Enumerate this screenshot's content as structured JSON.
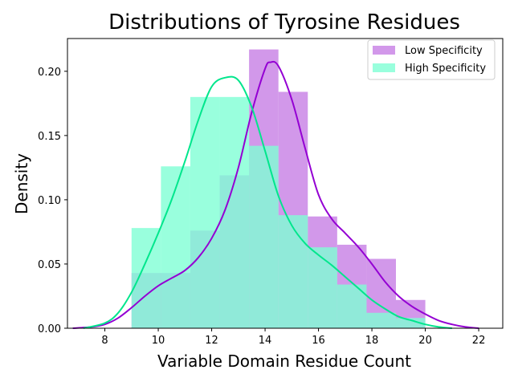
{
  "chart_data": {
    "type": "histogram",
    "title": "Distributions of Tyrosine Residues",
    "xlabel": "Variable Domain Residue Count",
    "ylabel": "Density",
    "xlim": [
      6.6,
      22.9
    ],
    "ylim": [
      0,
      0.2255
    ],
    "xticks": [
      8,
      10,
      12,
      14,
      16,
      18,
      20,
      22
    ],
    "yticks": [
      0.0,
      0.05,
      0.1,
      0.15,
      0.2
    ],
    "xtick_labels": [
      "8",
      "10",
      "12",
      "14",
      "16",
      "18",
      "20",
      "22"
    ],
    "ytick_labels": [
      "0.00",
      "0.05",
      "0.10",
      "0.15",
      "0.20"
    ],
    "legend_position": "top-right",
    "series": [
      {
        "name": "Low Specificity",
        "color": "#9400d3",
        "bar_color": "#c77ee5",
        "bins": [
          9.0,
          10.1,
          11.2,
          12.3,
          13.4,
          14.5,
          15.6,
          16.7,
          17.8,
          18.9,
          20.0
        ],
        "densities": [
          0.043,
          0.043,
          0.076,
          0.119,
          0.217,
          0.184,
          0.087,
          0.065,
          0.054,
          0.022
        ],
        "kde": [
          [
            6.8,
            0.0
          ],
          [
            7.5,
            0.001
          ],
          [
            8.0,
            0.003
          ],
          [
            8.5,
            0.008
          ],
          [
            9.0,
            0.016
          ],
          [
            9.5,
            0.025
          ],
          [
            10.0,
            0.033
          ],
          [
            10.5,
            0.039
          ],
          [
            11.0,
            0.045
          ],
          [
            11.5,
            0.055
          ],
          [
            12.0,
            0.07
          ],
          [
            12.5,
            0.092
          ],
          [
            13.0,
            0.125
          ],
          [
            13.5,
            0.168
          ],
          [
            14.0,
            0.202
          ],
          [
            14.2,
            0.207
          ],
          [
            14.5,
            0.204
          ],
          [
            15.0,
            0.178
          ],
          [
            15.5,
            0.14
          ],
          [
            16.0,
            0.104
          ],
          [
            16.5,
            0.085
          ],
          [
            17.0,
            0.074
          ],
          [
            17.5,
            0.063
          ],
          [
            18.0,
            0.05
          ],
          [
            18.5,
            0.036
          ],
          [
            19.0,
            0.025
          ],
          [
            19.5,
            0.017
          ],
          [
            20.0,
            0.011
          ],
          [
            20.5,
            0.006
          ],
          [
            21.0,
            0.003
          ],
          [
            21.5,
            0.001
          ],
          [
            22.0,
            0.0
          ]
        ]
      },
      {
        "name": "High Specificity",
        "color": "#00e68c",
        "bar_color": "#7fffd4",
        "bins": [
          9.0,
          10.1,
          11.2,
          12.3,
          13.4,
          14.5,
          15.6,
          16.7,
          17.8,
          18.9,
          20.0
        ],
        "densities": [
          0.078,
          0.126,
          0.18,
          0.18,
          0.142,
          0.088,
          0.063,
          0.034,
          0.012,
          0.008
        ],
        "kde": [
          [
            7.2,
            0.0
          ],
          [
            8.0,
            0.004
          ],
          [
            8.5,
            0.012
          ],
          [
            9.0,
            0.028
          ],
          [
            9.5,
            0.05
          ],
          [
            10.0,
            0.074
          ],
          [
            10.5,
            0.1
          ],
          [
            11.0,
            0.13
          ],
          [
            11.5,
            0.162
          ],
          [
            12.0,
            0.188
          ],
          [
            12.5,
            0.195
          ],
          [
            13.0,
            0.193
          ],
          [
            13.5,
            0.172
          ],
          [
            14.0,
            0.138
          ],
          [
            14.5,
            0.103
          ],
          [
            15.0,
            0.08
          ],
          [
            15.5,
            0.066
          ],
          [
            16.0,
            0.057
          ],
          [
            16.5,
            0.049
          ],
          [
            17.0,
            0.04
          ],
          [
            17.5,
            0.031
          ],
          [
            18.0,
            0.022
          ],
          [
            18.5,
            0.015
          ],
          [
            19.0,
            0.009
          ],
          [
            19.5,
            0.006
          ],
          [
            20.0,
            0.003
          ],
          [
            20.5,
            0.001
          ],
          [
            21.0,
            0.0
          ]
        ]
      }
    ]
  }
}
